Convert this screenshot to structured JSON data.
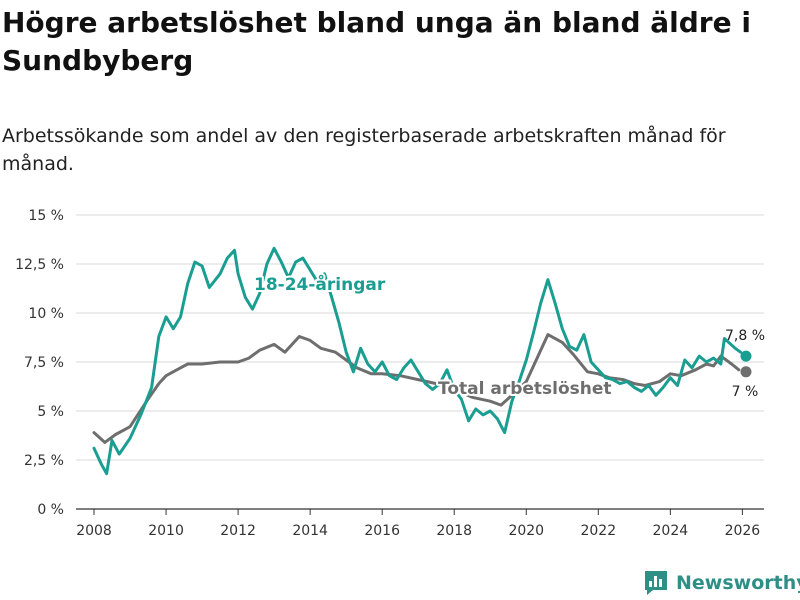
{
  "title": "Högre arbetslöshet bland unga än bland äldre i Sundbyberg",
  "subtitle": "Arbetssökande som andel av den registerbaserade arbetskraften månad för månad.",
  "brand": {
    "name": "Newsworthy",
    "icon": "bar-chart-logo-icon",
    "color": "#2e8f87"
  },
  "chart_data": {
    "type": "line",
    "ylim": [
      0,
      15
    ],
    "xlim": [
      2007.5,
      2026.6
    ],
    "yticks": [
      {
        "value": 0,
        "label": "0 %"
      },
      {
        "value": 2.5,
        "label": "2,5 %"
      },
      {
        "value": 5,
        "label": "5 %"
      },
      {
        "value": 7.5,
        "label": "7,5 %"
      },
      {
        "value": 10,
        "label": "10 %"
      },
      {
        "value": 12.5,
        "label": "12,5 %"
      },
      {
        "value": 15,
        "label": "15 %"
      }
    ],
    "xticks": [
      {
        "value": 2008,
        "label": "2008"
      },
      {
        "value": 2010,
        "label": "2010"
      },
      {
        "value": 2012,
        "label": "2012"
      },
      {
        "value": 2014,
        "label": "2014"
      },
      {
        "value": 2016,
        "label": "2016"
      },
      {
        "value": 2018,
        "label": "2018"
      },
      {
        "value": 2020,
        "label": "2020"
      },
      {
        "value": 2022,
        "label": "2022"
      },
      {
        "value": 2024,
        "label": "2024"
      },
      {
        "value": 2026,
        "label": "2026"
      }
    ],
    "grid": true,
    "series": [
      {
        "name": "Total arbetslöshet",
        "label": "Total arbetslöshet",
        "color": "#6e6e6e",
        "end_label": "7 %",
        "points": [
          [
            2008,
            3.9
          ],
          [
            2008.3,
            3.4
          ],
          [
            2008.6,
            3.8
          ],
          [
            2009,
            4.2
          ],
          [
            2009.5,
            5.6
          ],
          [
            2009.8,
            6.4
          ],
          [
            2010,
            6.8
          ],
          [
            2010.3,
            7.1
          ],
          [
            2010.6,
            7.4
          ],
          [
            2011,
            7.4
          ],
          [
            2011.5,
            7.5
          ],
          [
            2012,
            7.5
          ],
          [
            2012.3,
            7.7
          ],
          [
            2012.6,
            8.1
          ],
          [
            2013,
            8.4
          ],
          [
            2013.3,
            8.0
          ],
          [
            2013.7,
            8.8
          ],
          [
            2014,
            8.6
          ],
          [
            2014.3,
            8.2
          ],
          [
            2014.7,
            8.0
          ],
          [
            2015,
            7.6
          ],
          [
            2015.3,
            7.2
          ],
          [
            2015.7,
            6.9
          ],
          [
            2016,
            6.9
          ],
          [
            2016.5,
            6.8
          ],
          [
            2017,
            6.6
          ],
          [
            2017.5,
            6.4
          ],
          [
            2018,
            6.1
          ],
          [
            2018.5,
            5.7
          ],
          [
            2019,
            5.5
          ],
          [
            2019.3,
            5.3
          ],
          [
            2019.6,
            5.8
          ],
          [
            2020,
            6.5
          ],
          [
            2020.3,
            7.7
          ],
          [
            2020.6,
            8.9
          ],
          [
            2021,
            8.5
          ],
          [
            2021.3,
            7.9
          ],
          [
            2021.7,
            7.0
          ],
          [
            2022,
            6.9
          ],
          [
            2022.3,
            6.7
          ],
          [
            2022.7,
            6.6
          ],
          [
            2023,
            6.4
          ],
          [
            2023.3,
            6.3
          ],
          [
            2023.7,
            6.5
          ],
          [
            2024,
            6.9
          ],
          [
            2024.3,
            6.8
          ],
          [
            2024.7,
            7.1
          ],
          [
            2025,
            7.4
          ],
          [
            2025.2,
            7.3
          ],
          [
            2025.4,
            7.8
          ],
          [
            2025.7,
            7.4
          ],
          [
            2025.9,
            7.1
          ]
        ],
        "last_point": [
          2026.1,
          7.0
        ]
      },
      {
        "name": "18-24-åringar",
        "label": "18-24-åringar",
        "color": "#1a9e91",
        "end_label": "7,8 %",
        "points": [
          [
            2008,
            3.1
          ],
          [
            2008.2,
            2.3
          ],
          [
            2008.35,
            1.8
          ],
          [
            2008.5,
            3.5
          ],
          [
            2008.7,
            2.8
          ],
          [
            2009,
            3.6
          ],
          [
            2009.3,
            4.8
          ],
          [
            2009.6,
            6.2
          ],
          [
            2009.8,
            8.8
          ],
          [
            2010,
            9.8
          ],
          [
            2010.2,
            9.2
          ],
          [
            2010.4,
            9.8
          ],
          [
            2010.6,
            11.5
          ],
          [
            2010.8,
            12.6
          ],
          [
            2011,
            12.4
          ],
          [
            2011.2,
            11.3
          ],
          [
            2011.5,
            12.0
          ],
          [
            2011.7,
            12.8
          ],
          [
            2011.9,
            13.2
          ],
          [
            2012,
            12.0
          ],
          [
            2012.2,
            10.8
          ],
          [
            2012.4,
            10.2
          ],
          [
            2012.6,
            11.0
          ],
          [
            2012.8,
            12.5
          ],
          [
            2013,
            13.3
          ],
          [
            2013.2,
            12.6
          ],
          [
            2013.4,
            11.8
          ],
          [
            2013.6,
            12.6
          ],
          [
            2013.8,
            12.8
          ],
          [
            2014,
            12.2
          ],
          [
            2014.2,
            11.6
          ],
          [
            2014.4,
            12.0
          ],
          [
            2014.6,
            10.8
          ],
          [
            2014.8,
            9.5
          ],
          [
            2015,
            8.0
          ],
          [
            2015.2,
            7.0
          ],
          [
            2015.4,
            8.2
          ],
          [
            2015.6,
            7.4
          ],
          [
            2015.8,
            7.0
          ],
          [
            2016,
            7.5
          ],
          [
            2016.2,
            6.8
          ],
          [
            2016.4,
            6.6
          ],
          [
            2016.6,
            7.2
          ],
          [
            2016.8,
            7.6
          ],
          [
            2017,
            7.0
          ],
          [
            2017.2,
            6.4
          ],
          [
            2017.4,
            6.1
          ],
          [
            2017.6,
            6.4
          ],
          [
            2017.8,
            7.1
          ],
          [
            2018,
            6.1
          ],
          [
            2018.2,
            5.6
          ],
          [
            2018.4,
            4.5
          ],
          [
            2018.6,
            5.1
          ],
          [
            2018.8,
            4.8
          ],
          [
            2019,
            5.0
          ],
          [
            2019.2,
            4.6
          ],
          [
            2019.4,
            3.9
          ],
          [
            2019.6,
            5.5
          ],
          [
            2019.8,
            6.5
          ],
          [
            2020,
            7.6
          ],
          [
            2020.2,
            9.0
          ],
          [
            2020.4,
            10.5
          ],
          [
            2020.6,
            11.7
          ],
          [
            2020.8,
            10.5
          ],
          [
            2021,
            9.2
          ],
          [
            2021.2,
            8.3
          ],
          [
            2021.4,
            8.1
          ],
          [
            2021.6,
            8.9
          ],
          [
            2021.8,
            7.5
          ],
          [
            2022,
            7.1
          ],
          [
            2022.2,
            6.7
          ],
          [
            2022.4,
            6.6
          ],
          [
            2022.6,
            6.4
          ],
          [
            2022.8,
            6.5
          ],
          [
            2023,
            6.2
          ],
          [
            2023.2,
            6.0
          ],
          [
            2023.4,
            6.3
          ],
          [
            2023.6,
            5.8
          ],
          [
            2023.8,
            6.2
          ],
          [
            2024,
            6.7
          ],
          [
            2024.2,
            6.3
          ],
          [
            2024.4,
            7.6
          ],
          [
            2024.6,
            7.2
          ],
          [
            2024.8,
            7.8
          ],
          [
            2025,
            7.5
          ],
          [
            2025.2,
            7.7
          ],
          [
            2025.4,
            7.4
          ],
          [
            2025.5,
            8.7
          ],
          [
            2025.8,
            8.2
          ],
          [
            2025.95,
            8.0
          ]
        ],
        "last_point": [
          2026.1,
          7.8
        ]
      }
    ]
  }
}
